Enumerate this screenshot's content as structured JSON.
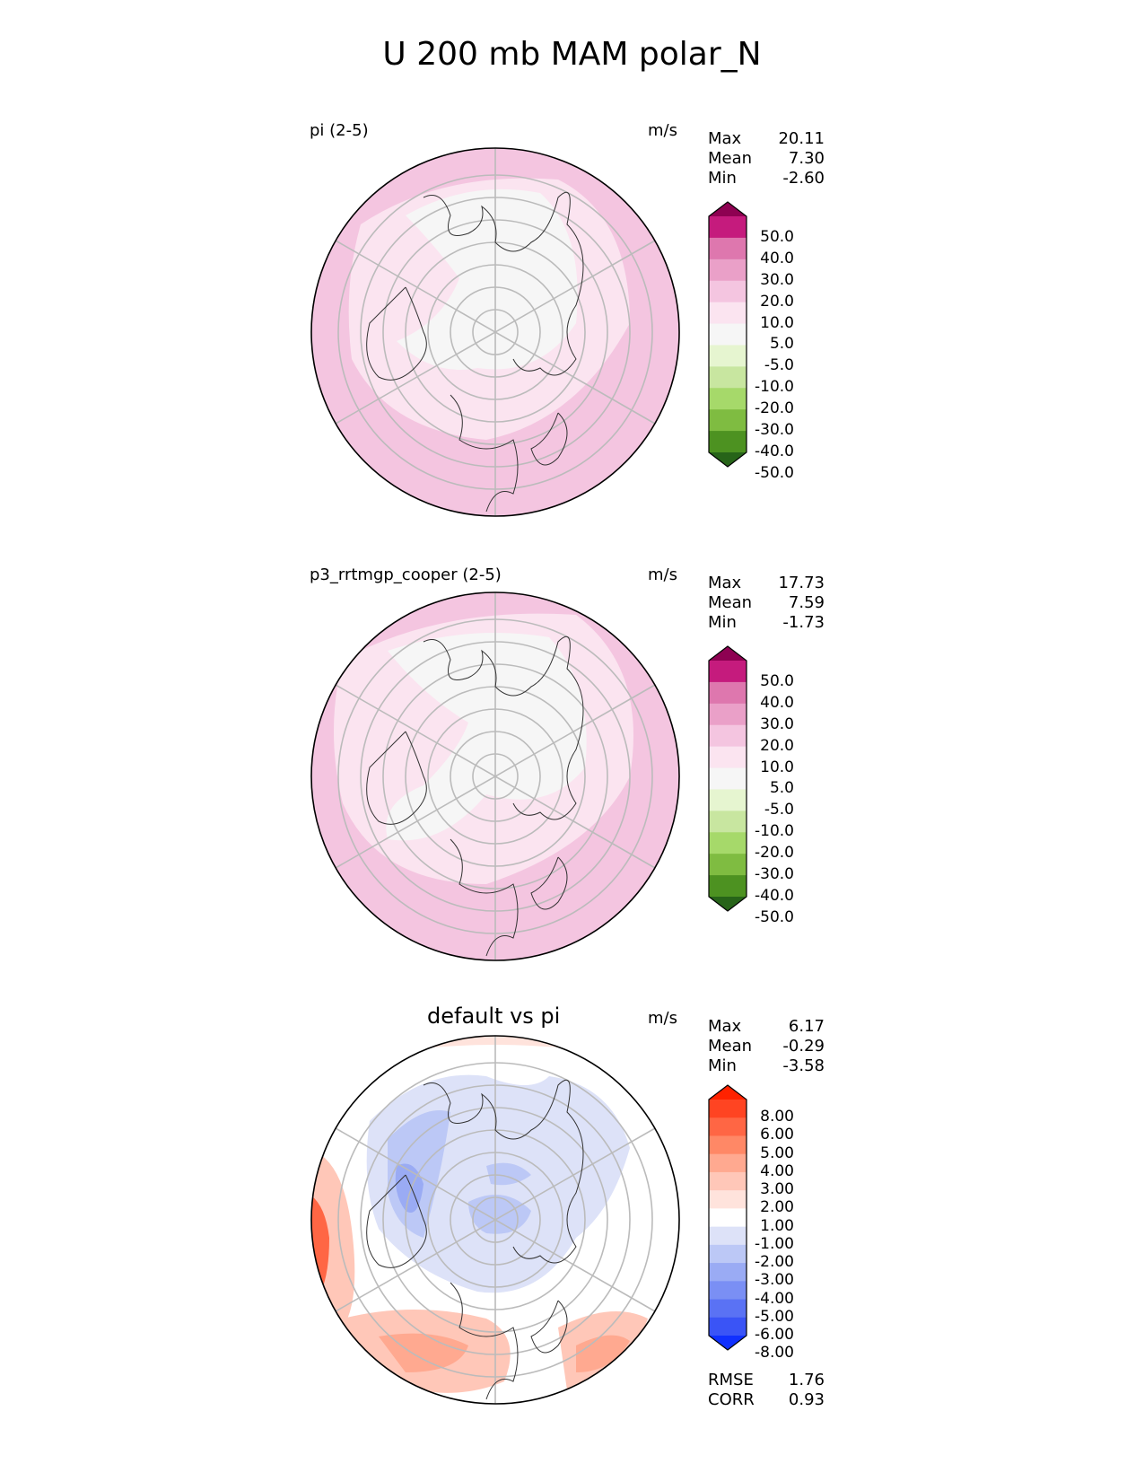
{
  "title": "U 200 mb MAM polar_N",
  "panels": [
    {
      "label": "pi (2-5)",
      "units": "m/s",
      "stats": [
        {
          "name": "Max",
          "value": "20.11"
        },
        {
          "name": "Mean",
          "value": "7.30"
        },
        {
          "name": "Min",
          "value": "-2.60"
        }
      ],
      "colorbar": {
        "ticks": [
          "50.0",
          "40.0",
          "30.0",
          "20.0",
          "10.0",
          "5.0",
          "-5.0",
          "-10.0",
          "-20.0",
          "-30.0",
          "-40.0",
          "-50.0"
        ],
        "colors": [
          "#8e0152",
          "#c51b7d",
          "#de77ae",
          "#eaa0c8",
          "#f4c5e0",
          "#fbe4f0",
          "#f6f6f6",
          "#e6f5d0",
          "#c8e6a0",
          "#a6d96a",
          "#7fbc41",
          "#4d9221",
          "#276419"
        ]
      }
    },
    {
      "label": "p3_rrtmgp_cooper (2-5)",
      "units": "m/s",
      "stats": [
        {
          "name": "Max",
          "value": "17.73"
        },
        {
          "name": "Mean",
          "value": "7.59"
        },
        {
          "name": "Min",
          "value": "-1.73"
        }
      ],
      "colorbar": {
        "ticks": [
          "50.0",
          "40.0",
          "30.0",
          "20.0",
          "10.0",
          "5.0",
          "-5.0",
          "-10.0",
          "-20.0",
          "-30.0",
          "-40.0",
          "-50.0"
        ],
        "colors": [
          "#8e0152",
          "#c51b7d",
          "#de77ae",
          "#eaa0c8",
          "#f4c5e0",
          "#fbe4f0",
          "#f6f6f6",
          "#e6f5d0",
          "#c8e6a0",
          "#a6d96a",
          "#7fbc41",
          "#4d9221",
          "#276419"
        ]
      }
    },
    {
      "title": "default vs pi",
      "units": "m/s",
      "stats": [
        {
          "name": "Max",
          "value": "6.17"
        },
        {
          "name": "Mean",
          "value": "-0.29"
        },
        {
          "name": "Min",
          "value": "-3.58"
        }
      ],
      "colorbar": {
        "ticks": [
          "8.00",
          "6.00",
          "5.00",
          "4.00",
          "3.00",
          "2.00",
          "1.00",
          "-1.00",
          "-2.00",
          "-3.00",
          "-4.00",
          "-5.00",
          "-6.00",
          "-8.00"
        ],
        "colors": [
          "#ff2200",
          "#ff4422",
          "#ff6644",
          "#ff8866",
          "#ffa990",
          "#ffc7b8",
          "#ffe3dc",
          "#ffffff",
          "#dde2f8",
          "#bcc8f6",
          "#9aabf4",
          "#7a8ff4",
          "#5a72f4",
          "#3a54f6",
          "#1030ff"
        ]
      },
      "footer": [
        {
          "name": "RMSE",
          "value": "1.76"
        },
        {
          "name": "CORR",
          "value": "0.93"
        }
      ]
    }
  ]
}
